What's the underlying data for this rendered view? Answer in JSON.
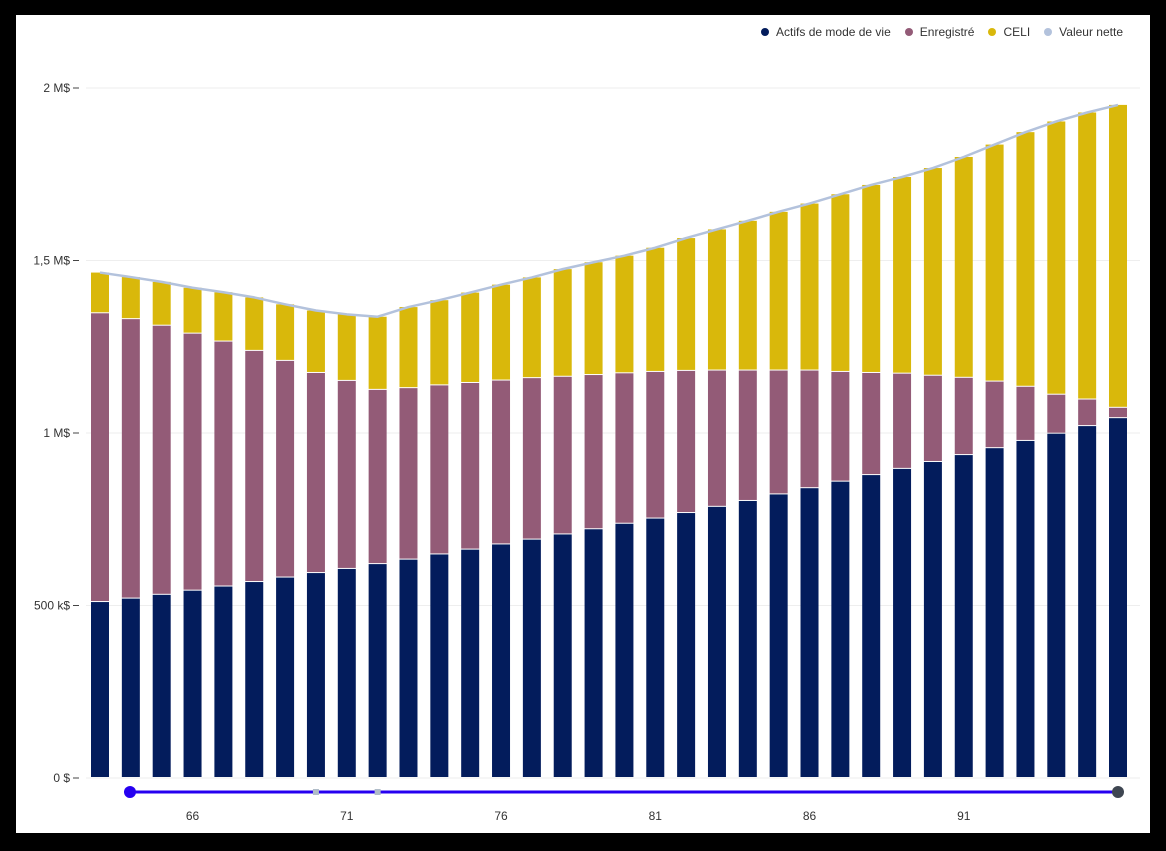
{
  "colors": {
    "lifestyle": "#031c5c",
    "registered": "#935b77",
    "tfsa": "#d9b80b",
    "networth": "#b3c2dc",
    "slider": "#2600f0",
    "slider_end": "#3e4651",
    "slider_marker": "#b0bcc8"
  },
  "legend": [
    {
      "key": "lifestyle",
      "label": "Actifs de mode de vie"
    },
    {
      "key": "registered",
      "label": "Enregistré"
    },
    {
      "key": "tfsa",
      "label": "CELI"
    },
    {
      "key": "networth",
      "label": "Valeur nette"
    }
  ],
  "chart_data": {
    "type": "bar",
    "stacked": true,
    "title": "",
    "xlabel": "",
    "ylabel": "",
    "ylim": [
      0,
      2000000
    ],
    "y_ticks": [
      {
        "value": 0,
        "label": "0 $"
      },
      {
        "value": 500000,
        "label": "500 k$"
      },
      {
        "value": 1000000,
        "label": "1 M$"
      },
      {
        "value": 1500000,
        "label": "1,5 M$"
      },
      {
        "value": 2000000,
        "label": "2 M$"
      }
    ],
    "x_tick_labels": [
      "66",
      "71",
      "76",
      "81",
      "86",
      "91"
    ],
    "categories": [
      63,
      64,
      65,
      66,
      67,
      68,
      69,
      70,
      71,
      72,
      73,
      74,
      75,
      76,
      77,
      78,
      79,
      80,
      81,
      82,
      83,
      84,
      85,
      86,
      87,
      88,
      89,
      90,
      91,
      92,
      93,
      94,
      95,
      96
    ],
    "series": [
      {
        "name": "Actifs de mode de vie",
        "key": "lifestyle",
        "values": [
          510000,
          520000,
          531000,
          543000,
          555000,
          568000,
          581000,
          594000,
          606000,
          620000,
          633000,
          648000,
          662000,
          677000,
          691000,
          706000,
          721000,
          737000,
          752000,
          768000,
          786000,
          803000,
          822000,
          840000,
          859000,
          878000,
          896000,
          916000,
          936000,
          956000,
          977000,
          998000,
          1020000,
          1043000
        ]
      },
      {
        "name": "Enregistré",
        "key": "registered",
        "values": [
          837000,
          810000,
          780000,
          745000,
          710000,
          670000,
          628000,
          580000,
          545000,
          505000,
          497000,
          490000,
          483000,
          475000,
          468000,
          457000,
          447000,
          436000,
          425000,
          412000,
          395000,
          378000,
          359000,
          341000,
          318000,
          296000,
          276000,
          250000,
          224000,
          193000,
          157000,
          113000,
          77000,
          30000
        ]
      },
      {
        "name": "CELI",
        "key": "tfsa",
        "values": [
          118000,
          122000,
          127000,
          133000,
          143000,
          155000,
          164000,
          181000,
          193000,
          212000,
          235000,
          247000,
          262000,
          278000,
          292000,
          312000,
          327000,
          341000,
          360000,
          385000,
          409000,
          434000,
          460000,
          484000,
          515000,
          545000,
          570000,
          602000,
          640000,
          687000,
          738000,
          792000,
          832000,
          878000
        ]
      }
    ],
    "net_worth": {
      "name": "Valeur nette",
      "key": "networth",
      "values": [
        1465000,
        1452000,
        1438000,
        1421000,
        1408000,
        1393000,
        1373000,
        1355000,
        1344000,
        1337000,
        1365000,
        1385000,
        1407000,
        1430000,
        1451000,
        1475000,
        1495000,
        1514000,
        1537000,
        1565000,
        1590000,
        1615000,
        1641000,
        1665000,
        1692000,
        1719000,
        1742000,
        1768000,
        1800000,
        1836000,
        1872000,
        1903000,
        1929000,
        1951000
      ]
    }
  },
  "range_slider": {
    "start_age": 63,
    "end_age": 96,
    "markers": [
      70,
      72
    ]
  }
}
